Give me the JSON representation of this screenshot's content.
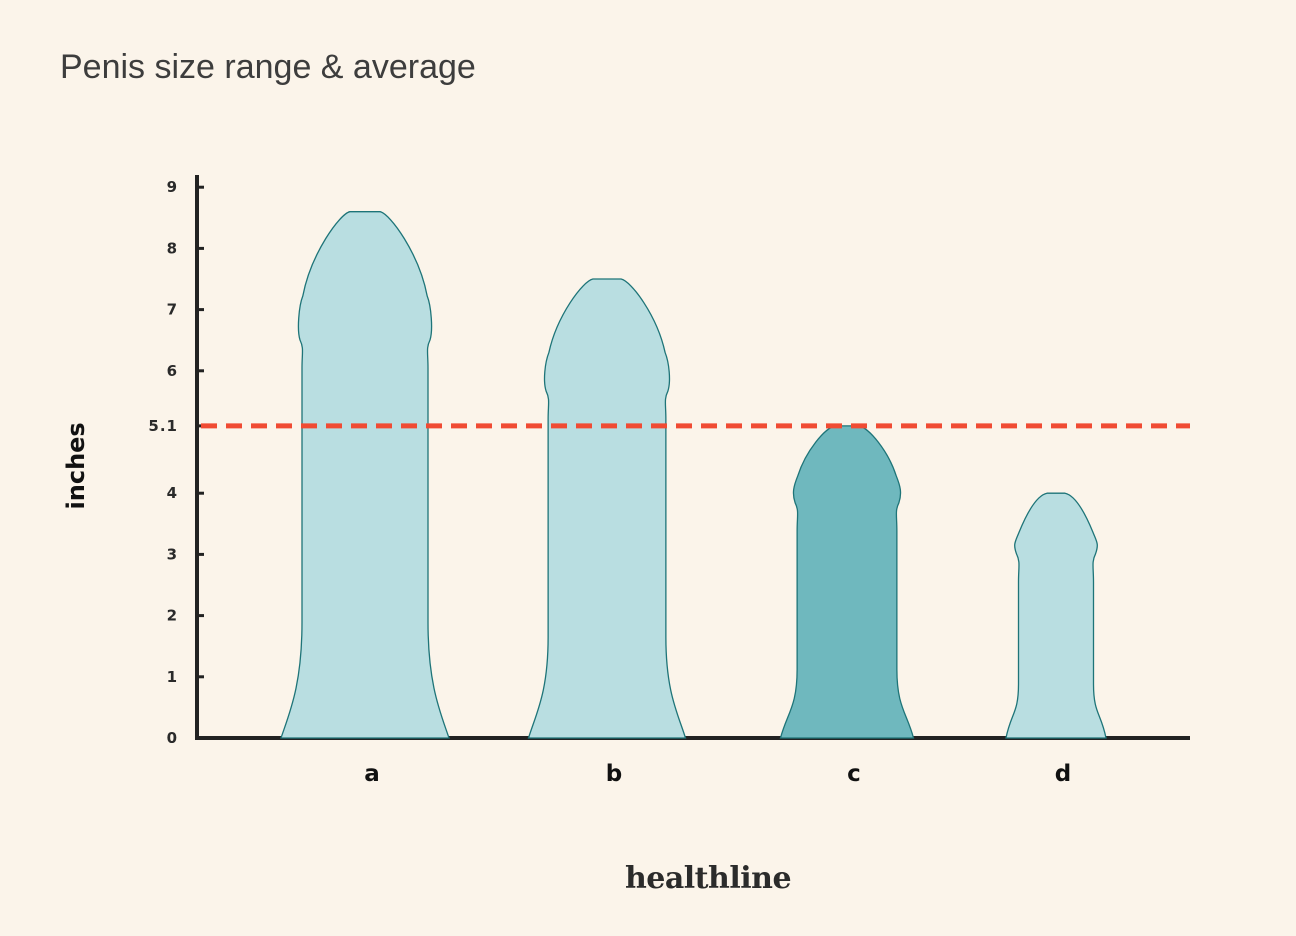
{
  "title": "Penis size range & average",
  "brand": "healthline",
  "colors": {
    "background": "#FBF4EA",
    "shape_fill": "#B9DEE1",
    "shape_highlight_fill": "#6FB8BE",
    "shape_stroke": "#1E7478",
    "axis": "#222222",
    "average_line": "#F04B33"
  },
  "chart_data": {
    "type": "bar",
    "categories": [
      "a",
      "b",
      "c",
      "d"
    ],
    "values": [
      8.6,
      7.5,
      5.1,
      4.0
    ],
    "highlighted": "c",
    "ylabel": "inches",
    "ylim": [
      0,
      9
    ],
    "yticks": [
      0,
      1,
      2,
      3,
      4,
      6,
      7,
      8,
      9
    ],
    "average": {
      "value": 5.1,
      "label": "5.1",
      "style": "dashed"
    },
    "grid": false,
    "legend": "none"
  }
}
